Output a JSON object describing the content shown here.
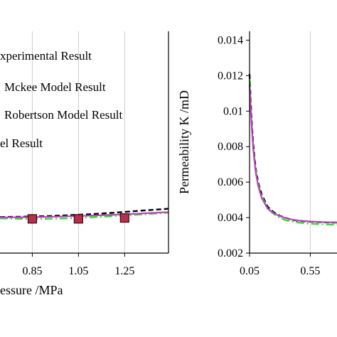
{
  "chart_data": [
    {
      "type": "line",
      "title": "",
      "xlabel": "essure /MPa",
      "ylabel": "",
      "xlim": [
        0.71,
        1.44
      ],
      "ylim": [
        0.002,
        0.0145
      ],
      "x_ticks": [
        "0.85",
        "1.05",
        "1.25"
      ],
      "x_tick_values": [
        0.85,
        1.05,
        1.25
      ],
      "grid": "vertical",
      "legend": {
        "placement": "top-left",
        "entries": [
          "xperimental Result",
          "Mckee Model Result",
          "Robertson Model Result",
          "el Result"
        ]
      },
      "series": [
        {
          "name": "Experimental Result",
          "style": "marker",
          "color": "#b5304a",
          "x": [
            0.85,
            1.05,
            1.25
          ],
          "y": [
            0.00393,
            0.00393,
            0.00398
          ]
        },
        {
          "name": "Mckee Model Result",
          "style": "dashed",
          "color": "#000000",
          "x": [
            0.71,
            0.8,
            0.9,
            1.0,
            1.1,
            1.2,
            1.3,
            1.44
          ],
          "y": [
            0.00403,
            0.00405,
            0.00408,
            0.00413,
            0.00419,
            0.00427,
            0.00437,
            0.0045
          ]
        },
        {
          "name": "Robertson Model Result",
          "style": "dash-dot",
          "color": "#33dd33",
          "x": [
            0.71,
            0.8,
            0.9,
            1.0,
            1.1,
            1.2,
            1.3,
            1.44
          ],
          "y": [
            0.00396,
            0.00393,
            0.00393,
            0.00396,
            0.00401,
            0.00408,
            0.00416,
            0.00428
          ]
        },
        {
          "name": "Model Result",
          "style": "solid",
          "color": "#c040c0",
          "x": [
            0.71,
            0.8,
            0.9,
            1.0,
            1.1,
            1.2,
            1.3,
            1.44
          ],
          "y": [
            0.00401,
            0.00402,
            0.00404,
            0.00407,
            0.00411,
            0.00416,
            0.00422,
            0.00431
          ]
        }
      ]
    },
    {
      "type": "line",
      "title": "",
      "xlabel": "",
      "ylabel": "Permeability  K /mD",
      "xlim": [
        0.05,
        0.77
      ],
      "ylim": [
        0.002,
        0.0145
      ],
      "x_ticks": [
        "0.05",
        "0.55"
      ],
      "x_tick_values": [
        0.05,
        0.55
      ],
      "y_ticks": [
        "0.002",
        "0.004",
        "0.006",
        "0.008",
        "0.01",
        "0.012",
        "0.014"
      ],
      "y_tick_values": [
        0.002,
        0.004,
        0.006,
        0.008,
        0.01,
        0.012,
        0.014
      ],
      "grid": "vertical",
      "series": [
        {
          "name": "Mckee Model Result",
          "style": "dashed",
          "color": "#000000",
          "x": [
            0.05,
            0.06,
            0.07,
            0.08,
            0.1,
            0.12,
            0.15,
            0.2,
            0.25,
            0.3,
            0.35,
            0.4,
            0.45,
            0.55,
            0.65,
            0.77
          ],
          "y": [
            0.0121,
            0.0105,
            0.0092,
            0.0082,
            0.0068,
            0.006,
            0.0053,
            0.0046,
            0.0043,
            0.0041,
            0.00398,
            0.00388,
            0.00382,
            0.00377,
            0.00374,
            0.00372
          ]
        },
        {
          "name": "Robertson Model Result",
          "style": "dash-dot",
          "color": "#33dd33",
          "x": [
            0.05,
            0.06,
            0.07,
            0.08,
            0.1,
            0.12,
            0.15,
            0.2,
            0.25,
            0.3,
            0.35,
            0.4,
            0.45,
            0.55,
            0.65,
            0.77
          ],
          "y": [
            0.0118,
            0.0102,
            0.009,
            0.008,
            0.0067,
            0.0059,
            0.0052,
            0.0045,
            0.0042,
            0.00398,
            0.00385,
            0.00378,
            0.00372,
            0.00366,
            0.00362,
            0.0036
          ]
        },
        {
          "name": "Model Result",
          "style": "solid",
          "color": "#c040c0",
          "x": [
            0.05,
            0.06,
            0.07,
            0.08,
            0.1,
            0.12,
            0.15,
            0.2,
            0.25,
            0.3,
            0.35,
            0.4,
            0.45,
            0.55,
            0.65,
            0.77
          ],
          "y": [
            0.0115,
            0.0101,
            0.0089,
            0.0079,
            0.0066,
            0.0058,
            0.0051,
            0.0045,
            0.00425,
            0.00408,
            0.00397,
            0.00389,
            0.00384,
            0.00378,
            0.00375,
            0.00373
          ]
        }
      ]
    }
  ]
}
